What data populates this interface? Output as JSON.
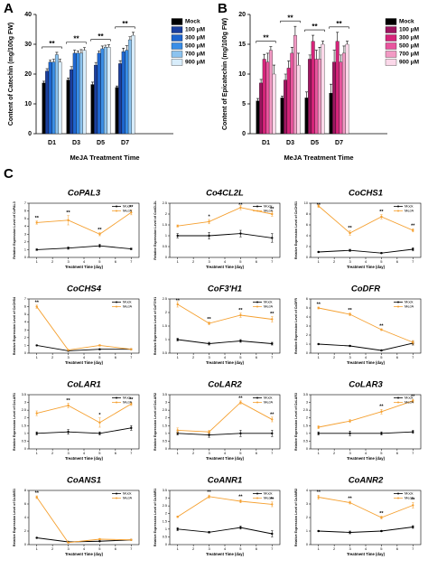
{
  "chart_data": [
    {
      "type": "bar",
      "panel_label": "A",
      "ylabel": "Content of Catechin (mg/100g FW)",
      "xlabel": "MeJA Treatment Time",
      "categories": [
        "D1",
        "D3",
        "D5",
        "D7"
      ],
      "ylim": [
        0,
        40
      ],
      "yticks": [
        0,
        10,
        20,
        30,
        40
      ],
      "significance": [
        "**",
        "**",
        "**",
        "**"
      ],
      "series": [
        {
          "name": "Mock",
          "color": "#000000",
          "values": [
            17,
            18,
            16.5,
            15.5
          ],
          "errors": [
            0.6,
            0.7,
            0.8,
            0.5
          ]
        },
        {
          "name": "100 μM",
          "color": "#1b3f9e",
          "values": [
            21,
            21.5,
            23,
            23.5
          ],
          "errors": [
            0.8,
            1,
            0.9,
            1
          ]
        },
        {
          "name": "300 μM",
          "color": "#1e66d0",
          "values": [
            24,
            27,
            27,
            27.5
          ],
          "errors": [
            0.7,
            1,
            0.8,
            1.2
          ]
        },
        {
          "name": "500 μM",
          "color": "#3a8ee6",
          "values": [
            24,
            27,
            28.5,
            28
          ],
          "errors": [
            1,
            0.8,
            0.9,
            1.5
          ]
        },
        {
          "name": "700 μM",
          "color": "#8cc3ef",
          "values": [
            26.5,
            27,
            29,
            31.5
          ],
          "errors": [
            0.8,
            1.2,
            0.7,
            1
          ]
        },
        {
          "name": "900 μM",
          "color": "#d8edfb",
          "values": [
            24,
            28,
            29,
            33
          ],
          "errors": [
            1,
            0.9,
            0.8,
            1
          ]
        }
      ]
    },
    {
      "type": "bar",
      "panel_label": "B",
      "ylabel": "Content of Epicatechin (mg/100g FW)",
      "xlabel": "MeJA Treatment Time",
      "categories": [
        "D1",
        "D3",
        "D5",
        "D7"
      ],
      "ylim": [
        0,
        20
      ],
      "yticks": [
        0,
        5,
        10,
        15,
        20
      ],
      "significance": [
        "**",
        "**",
        "**",
        "**"
      ],
      "series": [
        {
          "name": "Mock",
          "color": "#000000",
          "values": [
            5.5,
            6,
            6,
            6.8
          ],
          "errors": [
            0.4,
            0.3,
            1,
            1.5
          ]
        },
        {
          "name": "100 μM",
          "color": "#9e1560",
          "values": [
            8.5,
            9,
            12.5,
            12
          ],
          "errors": [
            0.6,
            1,
            0.7,
            2
          ]
        },
        {
          "name": "300 μM",
          "color": "#d6247a",
          "values": [
            12.5,
            11,
            15.5,
            15.5
          ],
          "errors": [
            0.8,
            1.2,
            1,
            1.5
          ]
        },
        {
          "name": "500 μM",
          "color": "#e8559e",
          "values": [
            12,
            13.5,
            12.5,
            12
          ],
          "errors": [
            1.5,
            1,
            1.5,
            1.2
          ]
        },
        {
          "name": "700 μM",
          "color": "#f29ac4",
          "values": [
            14,
            16.5,
            12.5,
            13.5
          ],
          "errors": [
            0.6,
            1.5,
            2,
            1.2
          ]
        },
        {
          "name": "900 μM",
          "color": "#fbd8e9",
          "values": [
            10,
            11.5,
            15,
            15
          ],
          "errors": [
            1.5,
            2,
            0.5,
            0.5
          ]
        }
      ]
    },
    {
      "type": "line",
      "panel_label": "C",
      "title": "CoPAL3",
      "ylabel": "Relative Expression Level of CoPAL3",
      "xlabel": "Treatment Time (day)",
      "x": [
        1,
        3,
        5,
        7
      ],
      "xlim": [
        0.5,
        7.5
      ],
      "xticks": [
        1,
        2,
        3,
        4,
        5,
        6,
        7
      ],
      "ylim": [
        0,
        7
      ],
      "yticks": [
        0,
        1,
        2,
        3,
        4,
        5,
        6,
        7
      ],
      "significance": [
        "**",
        "**",
        "**",
        "**"
      ],
      "series": [
        {
          "name": "Mock",
          "color": "#000000",
          "values": [
            1,
            1.2,
            1.5,
            1.1
          ],
          "errors": [
            0.1,
            0.15,
            0.2,
            0.1
          ]
        },
        {
          "name": "MeJA",
          "color": "#f5a030",
          "values": [
            4.5,
            4.8,
            3,
            5.8
          ],
          "errors": [
            0.2,
            0.6,
            0.2,
            0.3
          ]
        }
      ]
    },
    {
      "type": "line",
      "title": "Co4CL2L",
      "ylabel": "Relative Expression Level of Co4CL2L",
      "xlabel": "Treatment Time (day)",
      "x": [
        1,
        3,
        5,
        7
      ],
      "xlim": [
        0.5,
        7.5
      ],
      "xticks": [
        1,
        2,
        3,
        4,
        5,
        6,
        7
      ],
      "ylim": [
        0,
        2.5
      ],
      "yticks": [
        0,
        0.5,
        1,
        1.5,
        2,
        2.5
      ],
      "significance": [
        null,
        "*",
        "**",
        "**"
      ],
      "series": [
        {
          "name": "Mock",
          "color": "#000000",
          "values": [
            1,
            1,
            1.1,
            0.9
          ],
          "errors": [
            0.1,
            0.15,
            0.15,
            0.2
          ]
        },
        {
          "name": "MeJA",
          "color": "#f5a030",
          "values": [
            1.45,
            1.65,
            2.3,
            2
          ],
          "errors": [
            0.05,
            0.1,
            0.1,
            0.1
          ]
        }
      ]
    },
    {
      "type": "line",
      "title": "CoCHS1",
      "ylabel": "Relative Expression Level of CoCHS1",
      "xlabel": "Treatment Time (day)",
      "x": [
        1,
        3,
        5,
        7
      ],
      "xlim": [
        0.5,
        7.5
      ],
      "xticks": [
        1,
        2,
        3,
        4,
        5,
        6,
        7
      ],
      "ylim": [
        0,
        10
      ],
      "yticks": [
        0,
        2,
        4,
        6,
        8,
        10
      ],
      "significance": [
        "**",
        "**",
        "**",
        "**"
      ],
      "series": [
        {
          "name": "Mock",
          "color": "#000000",
          "values": [
            1,
            1.3,
            0.8,
            1.5
          ],
          "errors": [
            0.1,
            0.2,
            0.1,
            0.3
          ]
        },
        {
          "name": "MeJA",
          "color": "#f5a030",
          "values": [
            9.5,
            4.5,
            7.5,
            5
          ],
          "errors": [
            0.3,
            0.4,
            0.4,
            0.3
          ]
        }
      ]
    },
    {
      "type": "line",
      "title": "CoCHS4",
      "ylabel": "Relative Expression Level of CoCHS4",
      "xlabel": "Treatment Time (day)",
      "x": [
        1,
        3,
        5,
        7
      ],
      "xlim": [
        0.5,
        7.5
      ],
      "xticks": [
        1,
        2,
        3,
        4,
        5,
        6,
        7
      ],
      "ylim": [
        0,
        7
      ],
      "yticks": [
        0,
        1,
        2,
        3,
        4,
        5,
        6,
        7
      ],
      "significance": [
        "**",
        null,
        null,
        null
      ],
      "series": [
        {
          "name": "Mock",
          "color": "#000000",
          "values": [
            1,
            0.3,
            0.5,
            0.5
          ],
          "errors": [
            0.05,
            0.05,
            0.05,
            0.05
          ]
        },
        {
          "name": "MeJA",
          "color": "#f5a030",
          "values": [
            6,
            0.4,
            1,
            0.5
          ],
          "errors": [
            0.2,
            0.05,
            0.1,
            0.05
          ]
        }
      ]
    },
    {
      "type": "line",
      "title": "CoF3'H1",
      "ylabel": "Relative Expression Level of CoF3'H1",
      "xlabel": "Treatment Time (day)",
      "x": [
        1,
        3,
        5,
        7
      ],
      "xlim": [
        0.5,
        7.5
      ],
      "xticks": [
        1,
        2,
        3,
        4,
        5,
        6,
        7
      ],
      "ylim": [
        0.5,
        2.5
      ],
      "yticks": [
        0.5,
        1,
        1.5,
        2,
        2.5
      ],
      "significance": [
        "**",
        "**",
        "**",
        "**"
      ],
      "series": [
        {
          "name": "Mock",
          "color": "#000000",
          "values": [
            1,
            0.85,
            0.95,
            0.85
          ],
          "errors": [
            0.05,
            0.05,
            0.05,
            0.05
          ]
        },
        {
          "name": "MeJA",
          "color": "#f5a030",
          "values": [
            2.3,
            1.6,
            1.9,
            1.75
          ],
          "errors": [
            0.1,
            0.05,
            0.08,
            0.1
          ]
        }
      ]
    },
    {
      "type": "line",
      "title": "CoDFR",
      "ylabel": "Relative Expression Level of CoDFR",
      "xlabel": "Treatment Time (day)",
      "x": [
        1,
        3,
        5,
        7
      ],
      "xlim": [
        0.5,
        7.5
      ],
      "xticks": [
        1,
        2,
        3,
        4,
        5,
        6,
        7
      ],
      "ylim": [
        0,
        6
      ],
      "yticks": [
        0,
        1,
        2,
        3,
        4,
        5,
        6
      ],
      "significance": [
        "**",
        "**",
        "**",
        null
      ],
      "series": [
        {
          "name": "Mock",
          "color": "#000000",
          "values": [
            1,
            0.8,
            0.3,
            1.1
          ],
          "errors": [
            0.05,
            0.05,
            0.05,
            0.2
          ]
        },
        {
          "name": "MeJA",
          "color": "#f5a030",
          "values": [
            5,
            4.3,
            2.6,
            1.2
          ],
          "errors": [
            0.1,
            0.15,
            0.1,
            0.2
          ]
        }
      ]
    },
    {
      "type": "line",
      "title": "CoLAR1",
      "ylabel": "Relative Expression Level of CoLAR1",
      "xlabel": "Treatment Time (day)",
      "x": [
        1,
        3,
        5,
        7
      ],
      "xlim": [
        0.5,
        7.5
      ],
      "xticks": [
        1,
        2,
        3,
        4,
        5,
        6,
        7
      ],
      "ylim": [
        0,
        3.5
      ],
      "yticks": [
        0,
        0.5,
        1,
        1.5,
        2,
        2.5,
        3,
        3.5
      ],
      "significance": [
        null,
        "**",
        "*",
        "**"
      ],
      "series": [
        {
          "name": "Mock",
          "color": "#000000",
          "values": [
            1,
            1.1,
            1,
            1.35
          ],
          "errors": [
            0.1,
            0.15,
            0.1,
            0.15
          ]
        },
        {
          "name": "MeJA",
          "color": "#f5a030",
          "values": [
            2.3,
            2.8,
            1.7,
            2.9
          ],
          "errors": [
            0.15,
            0.15,
            0.3,
            0.1
          ]
        }
      ]
    },
    {
      "type": "line",
      "title": "CoLAR2",
      "ylabel": "Relative Expression Level of CoLAR2",
      "xlabel": "Treatment Time (day)",
      "x": [
        1,
        3,
        5,
        7
      ],
      "xlim": [
        0.5,
        7.5
      ],
      "xticks": [
        1,
        2,
        3,
        4,
        5,
        6,
        7
      ],
      "ylim": [
        0,
        3.5
      ],
      "yticks": [
        0,
        0.5,
        1,
        1.5,
        2,
        2.5,
        3,
        3.5
      ],
      "significance": [
        null,
        null,
        "**",
        "**"
      ],
      "series": [
        {
          "name": "Mock",
          "color": "#000000",
          "values": [
            1,
            0.9,
            1,
            1
          ],
          "errors": [
            0.1,
            0.15,
            0.2,
            0.2
          ]
        },
        {
          "name": "MeJA",
          "color": "#f5a030",
          "values": [
            1.2,
            1.1,
            3,
            1.9
          ],
          "errors": [
            0.15,
            0.1,
            0.1,
            0.15
          ]
        }
      ]
    },
    {
      "type": "line",
      "title": "CoLAR3",
      "ylabel": "Relative Expression Level of CoLAR3",
      "xlabel": "Treatment Time (day)",
      "x": [
        1,
        3,
        5,
        7
      ],
      "xlim": [
        0.5,
        7.5
      ],
      "xticks": [
        1,
        2,
        3,
        4,
        5,
        6,
        7
      ],
      "ylim": [
        0,
        3.5
      ],
      "yticks": [
        0,
        0.5,
        1,
        1.5,
        2,
        2.5,
        3,
        3.5
      ],
      "significance": [
        null,
        null,
        "**",
        "**"
      ],
      "series": [
        {
          "name": "Mock",
          "color": "#000000",
          "values": [
            1,
            1,
            1,
            1.1
          ],
          "errors": [
            0.1,
            0.15,
            0.1,
            0.1
          ]
        },
        {
          "name": "MeJA",
          "color": "#f5a030",
          "values": [
            1.4,
            1.8,
            2.4,
            3.1
          ],
          "errors": [
            0.1,
            0.1,
            0.15,
            0.1
          ]
        }
      ]
    },
    {
      "type": "line",
      "title": "CoANS1",
      "ylabel": "Relative Expression Level of CoANS1",
      "xlabel": "Treatment Time (day)",
      "x": [
        1,
        3,
        5,
        7
      ],
      "xlim": [
        0.5,
        7.5
      ],
      "xticks": [
        1,
        2,
        3,
        4,
        5,
        6,
        7
      ],
      "ylim": [
        0,
        8
      ],
      "yticks": [
        0,
        2,
        4,
        6,
        8
      ],
      "significance": [
        "**",
        null,
        null,
        null
      ],
      "series": [
        {
          "name": "Mock",
          "color": "#000000",
          "values": [
            1,
            0.4,
            0.5,
            0.7
          ],
          "errors": [
            0.05,
            0.05,
            0.05,
            0.05
          ]
        },
        {
          "name": "MeJA",
          "color": "#f5a030",
          "values": [
            7,
            0.3,
            0.8,
            0.7
          ],
          "errors": [
            0.2,
            0.05,
            0.1,
            0.05
          ]
        }
      ]
    },
    {
      "type": "line",
      "title": "CoANR1",
      "ylabel": "Relative Expression Level of CoANR1",
      "xlabel": "Treatment Time (day)",
      "x": [
        1,
        3,
        5,
        7
      ],
      "xlim": [
        0.5,
        7.5
      ],
      "xticks": [
        1,
        2,
        3,
        4,
        5,
        6,
        7
      ],
      "ylim": [
        0,
        3.5
      ],
      "yticks": [
        0,
        0.5,
        1,
        1.5,
        2,
        2.5,
        3,
        3.5
      ],
      "significance": [
        null,
        "**",
        "**",
        "**"
      ],
      "series": [
        {
          "name": "Mock",
          "color": "#000000",
          "values": [
            1,
            0.8,
            1.1,
            0.7
          ],
          "errors": [
            0.1,
            0.05,
            0.1,
            0.2
          ]
        },
        {
          "name": "MeJA",
          "color": "#f5a030",
          "values": [
            1.8,
            3.1,
            2.8,
            2.6
          ],
          "errors": [
            0.05,
            0.1,
            0.1,
            0.15
          ]
        }
      ]
    },
    {
      "type": "line",
      "title": "CoANR2",
      "ylabel": "Relative Expression Level of CoANR2",
      "xlabel": "Treatment Time (day)",
      "x": [
        1,
        3,
        5,
        7
      ],
      "xlim": [
        0.5,
        7.5
      ],
      "xticks": [
        1,
        2,
        3,
        4,
        5,
        6,
        7
      ],
      "ylim": [
        0,
        4
      ],
      "yticks": [
        0,
        1,
        2,
        3,
        4
      ],
      "significance": [
        "**",
        "**",
        "**",
        "**"
      ],
      "series": [
        {
          "name": "Mock",
          "color": "#000000",
          "values": [
            1,
            0.9,
            1,
            1.3
          ],
          "errors": [
            0.05,
            0.1,
            0.05,
            0.1
          ]
        },
        {
          "name": "MeJA",
          "color": "#f5a030",
          "values": [
            3.5,
            3.1,
            2,
            2.9
          ],
          "errors": [
            0.15,
            0.1,
            0.1,
            0.2
          ]
        }
      ]
    }
  ]
}
